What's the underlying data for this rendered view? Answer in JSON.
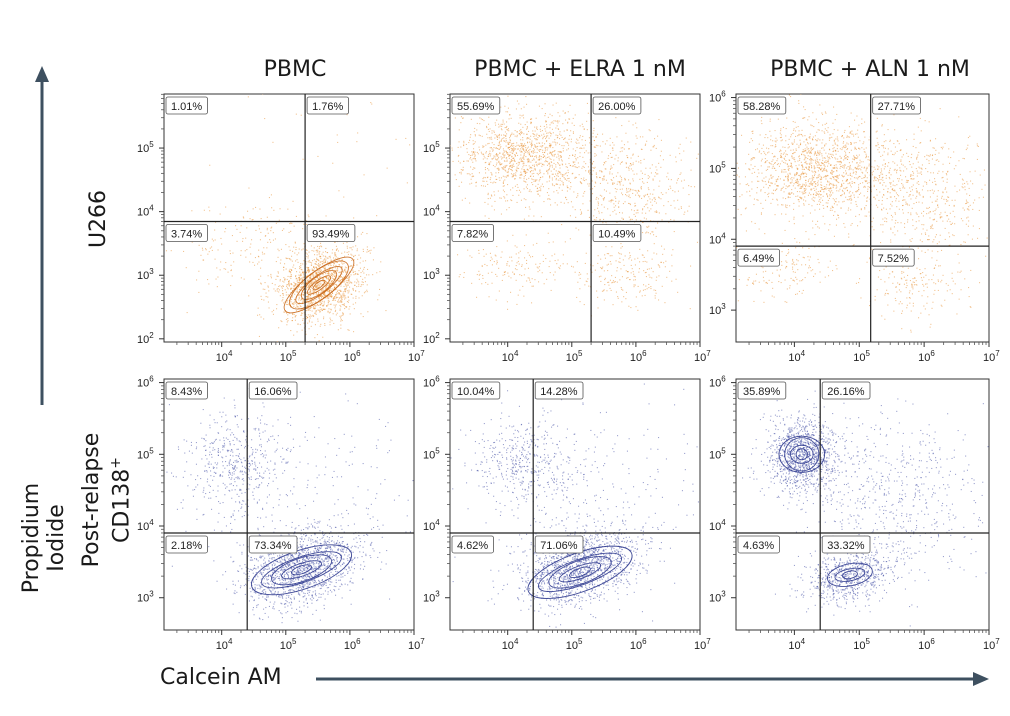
{
  "x_axis_label": "Calcein AM",
  "y_axis_label": "Propidium Iodide",
  "columns": [
    "PBMC",
    "PBMC + ELRA 1 nM",
    "PBMC + ALN 1 nM"
  ],
  "rows": [
    {
      "label": "U266",
      "sup": ""
    },
    {
      "label": "Post-relapse",
      "label2": "CD138",
      "sup": "+"
    }
  ],
  "colors": {
    "orange": "#E8943A",
    "blue": "#4A56A8",
    "axis_arrow": "#3E5060"
  },
  "chart_data": [
    {
      "type": "scatter",
      "row": "U266",
      "column": "PBMC",
      "x_scale": "log",
      "y_scale": "log",
      "x_ticks": [
        "10^4",
        "10^5",
        "10^6",
        "10^7"
      ],
      "y_ticks": [
        "10^2",
        "10^3",
        "10^4",
        "10^5"
      ],
      "x_gate": 200000,
      "y_gate": 7000,
      "quadrants": {
        "top_left": "1.01%",
        "top_right": "1.76%",
        "bottom_left": "3.74%",
        "bottom_right": "93.49%"
      },
      "color": "#E8943A",
      "contour": true
    },
    {
      "type": "scatter",
      "row": "U266",
      "column": "PBMC + ELRA 1 nM",
      "x_scale": "log",
      "y_scale": "log",
      "x_ticks": [
        "10^4",
        "10^5",
        "10^6",
        "10^7"
      ],
      "y_ticks": [
        "10^2",
        "10^3",
        "10^4",
        "10^5"
      ],
      "x_gate": 200000,
      "y_gate": 7000,
      "quadrants": {
        "top_left": "55.69%",
        "top_right": "26.00%",
        "bottom_left": "7.82%",
        "bottom_right": "10.49%"
      },
      "color": "#E8943A",
      "contour": false
    },
    {
      "type": "scatter",
      "row": "U266",
      "column": "PBMC + ALN 1 nM",
      "x_scale": "log",
      "y_scale": "log",
      "x_ticks": [
        "10^4",
        "10^5",
        "10^6",
        "10^7"
      ],
      "y_ticks": [
        "10^3",
        "10^4",
        "10^5",
        "10^6"
      ],
      "x_gate": 150000,
      "y_gate": 8000,
      "quadrants": {
        "top_left": "58.28%",
        "top_right": "27.71%",
        "bottom_left": "6.49%",
        "bottom_right": "7.52%"
      },
      "color": "#E8943A",
      "contour": false
    },
    {
      "type": "scatter",
      "row": "Post-relapse CD138+",
      "column": "PBMC",
      "x_scale": "log",
      "y_scale": "log",
      "x_ticks": [
        "10^4",
        "10^5",
        "10^6",
        "10^7"
      ],
      "y_ticks": [
        "10^3",
        "10^4",
        "10^5",
        "10^6"
      ],
      "x_gate": 25000,
      "y_gate": 8000,
      "quadrants": {
        "top_left": "8.43%",
        "top_right": "16.06%",
        "bottom_left": "2.18%",
        "bottom_right": "73.34%"
      },
      "color": "#4A56A8",
      "contour": true
    },
    {
      "type": "scatter",
      "row": "Post-relapse CD138+",
      "column": "PBMC + ELRA 1 nM",
      "x_scale": "log",
      "y_scale": "log",
      "x_ticks": [
        "10^4",
        "10^5",
        "10^6",
        "10^7"
      ],
      "y_ticks": [
        "10^3",
        "10^4",
        "10^5",
        "10^6"
      ],
      "x_gate": 25000,
      "y_gate": 8000,
      "quadrants": {
        "top_left": "10.04%",
        "top_right": "14.28%",
        "bottom_left": "4.62%",
        "bottom_right": "71.06%"
      },
      "color": "#4A56A8",
      "contour": true
    },
    {
      "type": "scatter",
      "row": "Post-relapse CD138+",
      "column": "PBMC + ALN 1 nM",
      "x_scale": "log",
      "y_scale": "log",
      "x_ticks": [
        "10^4",
        "10^5",
        "10^6",
        "10^7"
      ],
      "y_ticks": [
        "10^3",
        "10^4",
        "10^5",
        "10^6"
      ],
      "x_gate": 25000,
      "y_gate": 8000,
      "quadrants": {
        "top_left": "35.89%",
        "top_right": "26.16%",
        "bottom_left": "4.63%",
        "bottom_right": "33.32%"
      },
      "color": "#4A56A8",
      "contour": true
    }
  ]
}
